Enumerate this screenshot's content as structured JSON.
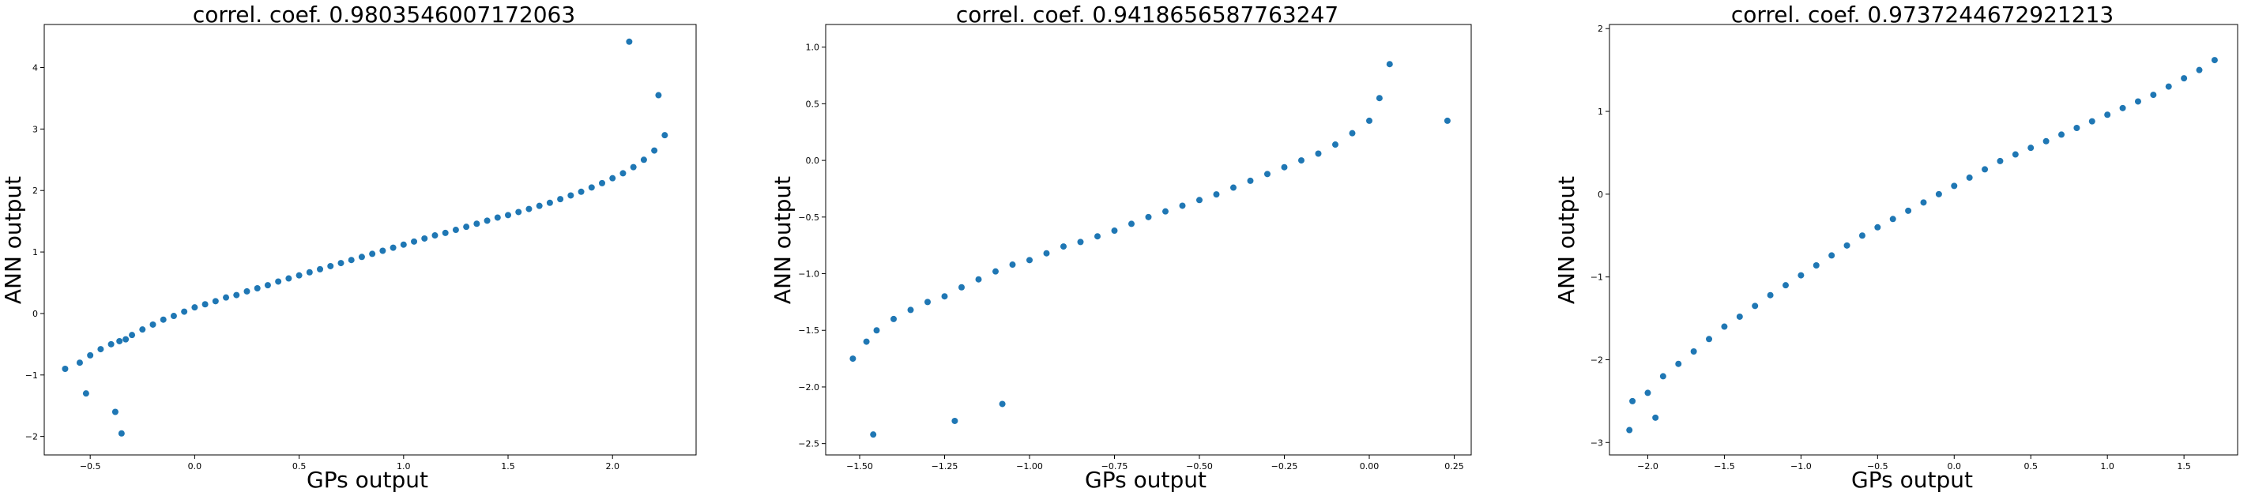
{
  "figure": {
    "marker_color": "#1f77b4"
  },
  "chart_data": [
    {
      "type": "scatter",
      "title": "correl. coef.  0.9803546007172063",
      "xlabel": "GPs output",
      "ylabel": "ANN output",
      "xlim": [
        -0.72,
        2.4
      ],
      "ylim": [
        -2.3,
        4.7
      ],
      "xticks": [
        -0.5,
        0.0,
        0.5,
        1.0,
        1.5,
        2.0
      ],
      "xtick_labels": [
        "−0.5",
        "0.0",
        "0.5",
        "1.0",
        "1.5",
        "2.0"
      ],
      "yticks": [
        -2,
        -1,
        0,
        1,
        2,
        3,
        4
      ],
      "ytick_labels": [
        "−2",
        "−1",
        "0",
        "1",
        "2",
        "3",
        "4"
      ],
      "series": [
        {
          "values_x": [
            -0.62,
            -0.55,
            -0.5,
            -0.45,
            -0.4,
            -0.36,
            -0.33,
            -0.3,
            -0.25,
            -0.2,
            -0.15,
            -0.1,
            -0.05,
            0.0,
            0.05,
            0.1,
            0.15,
            0.2,
            0.25,
            0.3,
            0.35,
            0.4,
            0.45,
            0.5,
            0.55,
            0.6,
            0.65,
            0.7,
            0.75,
            0.8,
            0.85,
            0.9,
            0.95,
            1.0,
            1.05,
            1.1,
            1.15,
            1.2,
            1.25,
            1.3,
            1.35,
            1.4,
            1.45,
            1.5,
            1.55,
            1.6,
            1.65,
            1.7,
            1.75,
            1.8,
            1.85,
            1.9,
            1.95,
            2.0,
            2.05,
            2.1,
            2.15,
            2.2,
            2.25,
            2.22,
            2.08,
            -0.35,
            -0.38,
            -0.52
          ],
          "values_y": [
            -0.9,
            -0.8,
            -0.68,
            -0.58,
            -0.5,
            -0.45,
            -0.42,
            -0.35,
            -0.26,
            -0.18,
            -0.1,
            -0.04,
            0.03,
            0.1,
            0.15,
            0.2,
            0.26,
            0.3,
            0.36,
            0.41,
            0.46,
            0.52,
            0.57,
            0.62,
            0.67,
            0.72,
            0.77,
            0.82,
            0.87,
            0.92,
            0.97,
            1.02,
            1.07,
            1.12,
            1.17,
            1.22,
            1.27,
            1.31,
            1.36,
            1.41,
            1.46,
            1.51,
            1.56,
            1.6,
            1.65,
            1.7,
            1.75,
            1.8,
            1.86,
            1.92,
            1.98,
            2.05,
            2.12,
            2.2,
            2.28,
            2.38,
            2.5,
            2.65,
            2.9,
            3.55,
            4.42,
            -1.95,
            -1.6,
            -1.3
          ]
        }
      ]
    },
    {
      "type": "scatter",
      "title": "correl. coef.  0.9418656587763247",
      "xlabel": "GPs output",
      "ylabel": "ANN output",
      "xlim": [
        -1.6,
        0.3
      ],
      "ylim": [
        -2.6,
        1.2
      ],
      "xticks": [
        -1.5,
        -1.25,
        -1.0,
        -0.75,
        -0.5,
        -0.25,
        0.0,
        0.25
      ],
      "xtick_labels": [
        "−1.50",
        "−1.25",
        "−1.00",
        "−0.75",
        "−0.50",
        "−0.25",
        "0.00",
        "0.25"
      ],
      "yticks": [
        -2.5,
        -2.0,
        -1.5,
        -1.0,
        -0.5,
        0.0,
        0.5,
        1.0
      ],
      "ytick_labels": [
        "−2.5",
        "−2.0",
        "−1.5",
        "−1.0",
        "−0.5",
        "0.0",
        "0.5",
        "1.0"
      ],
      "series": [
        {
          "values_x": [
            -1.52,
            -1.48,
            -1.45,
            -1.4,
            -1.35,
            -1.3,
            -1.25,
            -1.2,
            -1.15,
            -1.1,
            -1.05,
            -1.0,
            -0.95,
            -0.9,
            -0.85,
            -0.8,
            -0.75,
            -0.7,
            -0.65,
            -0.6,
            -0.55,
            -0.5,
            -0.45,
            -0.4,
            -0.35,
            -0.3,
            -0.25,
            -0.2,
            -0.15,
            -0.1,
            -0.05,
            0.0,
            0.03,
            0.06,
            0.23,
            -1.46,
            -1.22,
            -1.08
          ],
          "values_y": [
            -1.75,
            -1.6,
            -1.5,
            -1.4,
            -1.32,
            -1.25,
            -1.2,
            -1.12,
            -1.05,
            -0.98,
            -0.92,
            -0.88,
            -0.82,
            -0.76,
            -0.72,
            -0.67,
            -0.62,
            -0.56,
            -0.5,
            -0.45,
            -0.4,
            -0.35,
            -0.3,
            -0.24,
            -0.18,
            -0.12,
            -0.06,
            0.0,
            0.06,
            0.14,
            0.24,
            0.35,
            0.55,
            0.85,
            0.35,
            -2.42,
            -2.3,
            -2.15
          ]
        }
      ]
    },
    {
      "type": "scatter",
      "title": "correl. coef.  0.9737244672921213",
      "xlabel": "GPs output",
      "ylabel": "ANN output",
      "xlim": [
        -2.25,
        1.85
      ],
      "ylim": [
        -3.15,
        2.05
      ],
      "xticks": [
        -2.0,
        -1.5,
        -1.0,
        -0.5,
        0.0,
        0.5,
        1.0,
        1.5
      ],
      "xtick_labels": [
        "−2.0",
        "−1.5",
        "−1.0",
        "−0.5",
        "0.0",
        "0.5",
        "1.0",
        "1.5"
      ],
      "yticks": [
        -3,
        -2,
        -1,
        0,
        1,
        2
      ],
      "ytick_labels": [
        "−3",
        "−2",
        "−1",
        "0",
        "1",
        "2"
      ],
      "series": [
        {
          "values_x": [
            -2.1,
            -2.0,
            -1.9,
            -1.8,
            -1.7,
            -1.6,
            -1.5,
            -1.4,
            -1.3,
            -1.2,
            -1.1,
            -1.0,
            -0.9,
            -0.8,
            -0.7,
            -0.6,
            -0.5,
            -0.4,
            -0.3,
            -0.2,
            -0.1,
            0.0,
            0.1,
            0.2,
            0.3,
            0.4,
            0.5,
            0.6,
            0.7,
            0.8,
            0.9,
            1.0,
            1.1,
            1.2,
            1.3,
            1.4,
            1.5,
            1.6,
            1.7,
            -2.12,
            -1.95
          ],
          "values_y": [
            -2.5,
            -2.4,
            -2.2,
            -2.05,
            -1.9,
            -1.75,
            -1.6,
            -1.48,
            -1.35,
            -1.22,
            -1.1,
            -0.98,
            -0.86,
            -0.74,
            -0.62,
            -0.5,
            -0.4,
            -0.3,
            -0.2,
            -0.1,
            0.0,
            0.1,
            0.2,
            0.3,
            0.4,
            0.48,
            0.56,
            0.64,
            0.72,
            0.8,
            0.88,
            0.96,
            1.04,
            1.12,
            1.2,
            1.3,
            1.4,
            1.5,
            1.62,
            -2.85,
            -2.7
          ]
        }
      ]
    }
  ]
}
